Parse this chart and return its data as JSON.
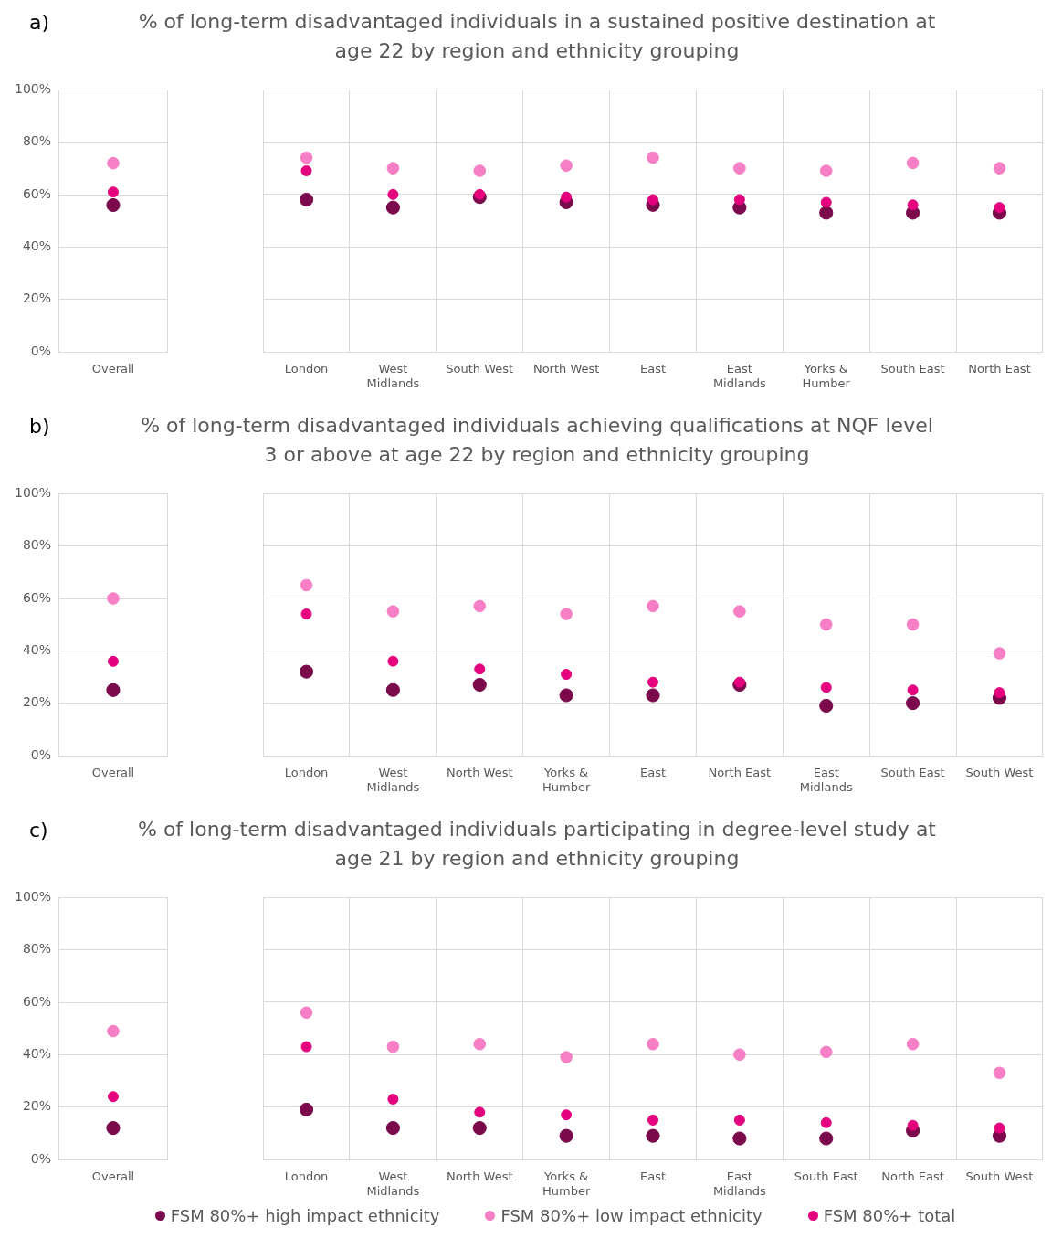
{
  "chart_data": [
    {
      "type": "scatter",
      "annotations": [
        "a)"
      ],
      "categories": [
        "Overall"
      ],
      "series": [
        {
          "name": "FSM 80%+ high impact ethnicity",
          "color": "#7a0a4c",
          "values": [
            56
          ]
        },
        {
          "name": "FSM 80%+ low impact ethnicity",
          "color": "#f77fc6",
          "values": [
            72
          ]
        },
        {
          "name": "FSM 80%+ total",
          "color": "#e5007d",
          "values": [
            61
          ]
        }
      ],
      "ylim": [
        0,
        100
      ],
      "yticks": [
        {
          "value": 0,
          "label": "0%"
        },
        {
          "value": 20,
          "label": "20%"
        },
        {
          "value": 40,
          "label": "40%"
        },
        {
          "value": 60,
          "label": "60%"
        },
        {
          "value": 80,
          "label": "80%"
        },
        {
          "value": 100,
          "label": "100%"
        }
      ],
      "grid": true,
      "marker": "circle",
      "legend": "bottom"
    },
    {
      "type": "scatter",
      "title": "% of long-term disadvantaged individuals in a sustained positive destination at age 22 by region and ethnicity grouping",
      "categories": [
        "London",
        "West Midlands",
        "South West",
        "North West",
        "East",
        "East Midlands",
        "Yorks & Humber",
        "South East",
        "North East"
      ],
      "series": [
        {
          "name": "FSM 80%+ high impact ethnicity",
          "color": "#7a0a4c",
          "values": [
            58,
            55,
            59,
            57,
            56,
            55,
            53,
            53,
            53
          ]
        },
        {
          "name": "FSM 80%+ low impact ethnicity",
          "color": "#f77fc6",
          "values": [
            74,
            70,
            69,
            71,
            74,
            70,
            69,
            72,
            70
          ]
        },
        {
          "name": "FSM 80%+ total",
          "color": "#e5007d",
          "values": [
            69,
            60,
            60,
            59,
            58,
            58,
            57,
            56,
            55
          ]
        }
      ],
      "ylim": [
        0,
        100
      ],
      "yticks": [
        0,
        20,
        40,
        60,
        80,
        100
      ],
      "tick_labels": "x",
      "grid": true,
      "marker": "circle",
      "legend": "bottom"
    },
    {
      "type": "scatter",
      "annotations": [
        "b)"
      ],
      "categories": [
        "Overall"
      ],
      "series": [
        {
          "name": "FSM 80%+ high impact ethnicity",
          "color": "#7a0a4c",
          "values": [
            25
          ]
        },
        {
          "name": "FSM 80%+ low impact ethnicity",
          "color": "#f77fc6",
          "values": [
            60
          ]
        },
        {
          "name": "FSM 80%+ total",
          "color": "#e5007d",
          "values": [
            36
          ]
        }
      ],
      "ylim": [
        0,
        100
      ],
      "yticks": [
        {
          "value": 0,
          "label": "0%"
        },
        {
          "value": 20,
          "label": "20%"
        },
        {
          "value": 40,
          "label": "40%"
        },
        {
          "value": 60,
          "label": "60%"
        },
        {
          "value": 80,
          "label": "80%"
        },
        {
          "value": 100,
          "label": "100%"
        }
      ],
      "grid": true,
      "marker": "circle",
      "legend": "bottom"
    },
    {
      "type": "scatter",
      "title": "% of long-term disadvantaged individuals achieving qualifications at NQF level 3 or above at age 22 by region and ethnicity grouping",
      "categories": [
        "London",
        "West Midlands",
        "North West",
        "Yorks & Humber",
        "East",
        "North East",
        "East Midlands",
        "South East",
        "South West"
      ],
      "series": [
        {
          "name": "FSM 80%+ high impact ethnicity",
          "color": "#7a0a4c",
          "values": [
            32,
            25,
            27,
            23,
            23,
            27,
            19,
            20,
            22
          ]
        },
        {
          "name": "FSM 80%+ low impact ethnicity",
          "color": "#f77fc6",
          "values": [
            65,
            55,
            57,
            54,
            57,
            55,
            50,
            50,
            39
          ]
        },
        {
          "name": "FSM 80%+ total",
          "color": "#e5007d",
          "values": [
            54,
            36,
            33,
            31,
            28,
            28,
            26,
            25,
            24
          ]
        }
      ],
      "ylim": [
        0,
        100
      ],
      "yticks": [
        0,
        20,
        40,
        60,
        80,
        100
      ],
      "tick_labels": "x",
      "grid": true,
      "marker": "circle",
      "legend": "bottom"
    },
    {
      "type": "scatter",
      "annotations": [
        "c)"
      ],
      "categories": [
        "Overall"
      ],
      "series": [
        {
          "name": "FSM 80%+ high impact ethnicity",
          "color": "#7a0a4c",
          "values": [
            12
          ]
        },
        {
          "name": "FSM 80%+ low impact ethnicity",
          "color": "#f77fc6",
          "values": [
            49
          ]
        },
        {
          "name": "FSM 80%+ total",
          "color": "#e5007d",
          "values": [
            24
          ]
        }
      ],
      "ylim": [
        0,
        100
      ],
      "yticks": [
        {
          "value": 0,
          "label": "0%"
        },
        {
          "value": 20,
          "label": "20%"
        },
        {
          "value": 40,
          "label": "40%"
        },
        {
          "value": 60,
          "label": "60%"
        },
        {
          "value": 80,
          "label": "80%"
        },
        {
          "value": 100,
          "label": "100%"
        }
      ],
      "grid": true,
      "marker": "circle",
      "legend": "bottom"
    },
    {
      "type": "scatter",
      "title": "% of long-term disadvantaged individuals participating in degree-level study at age 21 by region and ethnicity grouping",
      "categories": [
        "London",
        "West Midlands",
        "North West",
        "Yorks & Humber",
        "East",
        "East Midlands",
        "South East",
        "North East",
        "South West"
      ],
      "series": [
        {
          "name": "FSM 80%+ high impact ethnicity",
          "color": "#7a0a4c",
          "values": [
            19,
            12,
            12,
            9,
            9,
            8,
            8,
            11,
            9
          ]
        },
        {
          "name": "FSM 80%+ low impact ethnicity",
          "color": "#f77fc6",
          "values": [
            56,
            43,
            44,
            39,
            44,
            40,
            41,
            44,
            33
          ]
        },
        {
          "name": "FSM 80%+ total",
          "color": "#e5007d",
          "values": [
            43,
            23,
            18,
            17,
            15,
            15,
            14,
            13,
            12
          ]
        }
      ],
      "ylim": [
        0,
        100
      ],
      "yticks": [
        0,
        20,
        40,
        60,
        80,
        100
      ],
      "tick_labels": "x",
      "grid": true,
      "marker": "circle",
      "legend": "bottom"
    }
  ]
}
